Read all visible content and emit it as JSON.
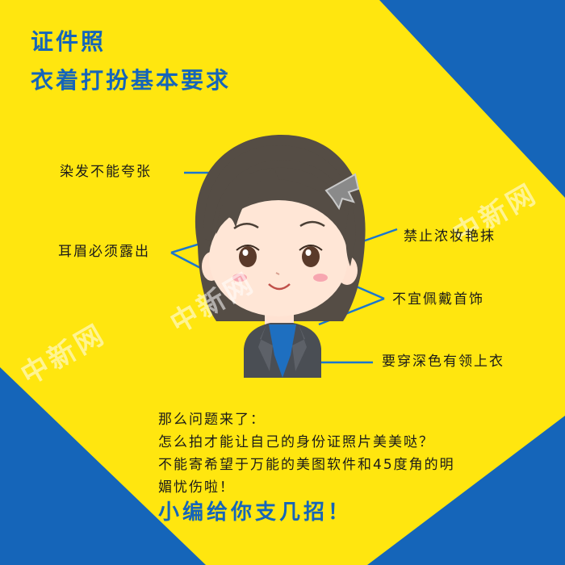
{
  "title": {
    "line1": "证件照",
    "line2": "衣着打扮基本要求"
  },
  "labels": {
    "hair": "染发不能夸张",
    "ears_brows": "耳眉必须露出",
    "makeup": "禁止浓妆艳抹",
    "accessories": "不宜佩戴首饰",
    "clothing": "要穿深色有领上衣"
  },
  "body": {
    "line1": "那么问题来了：",
    "line2": "怎么拍才能让自己的身份证照片美美哒？",
    "line3": "不能寄希望于万能的美图软件和45度角的明",
    "line4": "媚忧伤啦！"
  },
  "cta": "小编给你支几招！",
  "watermark": "中新网",
  "colors": {
    "yellow": "#ffe60f",
    "blue": "#1565b9",
    "hair": "#554d45",
    "jacket": "#4a4e54",
    "shirt": "#1e6fc0"
  }
}
